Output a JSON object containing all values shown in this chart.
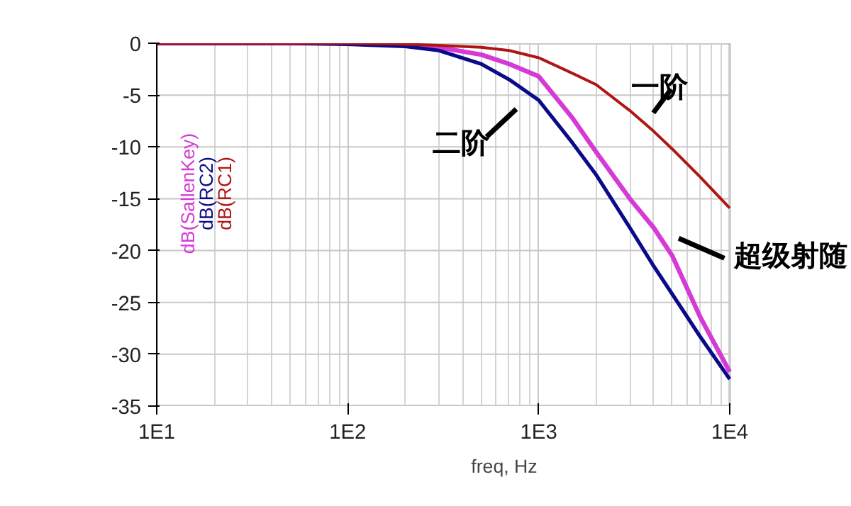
{
  "chart_data": {
    "type": "line",
    "xlabel": "freq, Hz",
    "log": "x",
    "grid": true,
    "legend": "left",
    "line_style": "solid",
    "marker": "none",
    "x": [
      10,
      50,
      100,
      200,
      300,
      500,
      700,
      1000,
      1500,
      2000,
      3000,
      4000,
      5000,
      7000,
      10000
    ],
    "xlim": [
      10,
      10000
    ],
    "xticks": [
      {
        "value": 10,
        "label": "1E1"
      },
      {
        "value": 100,
        "label": "1E2"
      },
      {
        "value": 1000,
        "label": "1E3"
      },
      {
        "value": 10000,
        "label": "1E4"
      }
    ],
    "ylim": [
      -35,
      0
    ],
    "yticks": [
      0,
      -5,
      -10,
      -15,
      -20,
      -25,
      -30,
      -35
    ],
    "series": [
      {
        "name": "dB(SallenKey)",
        "color": "#d63ad6",
        "values": [
          0,
          0,
          0,
          -0.2,
          -0.4,
          -1.1,
          -2.0,
          -3.2,
          -7.2,
          -10.5,
          -15,
          -17.8,
          -20.5,
          -26.4,
          -31.7
        ]
      },
      {
        "name": "dB(RC2)",
        "color": "#0a0a8a",
        "values": [
          0,
          0,
          -0.1,
          -0.3,
          -0.7,
          -2,
          -3.5,
          -5.5,
          -9.6,
          -12.7,
          -17.8,
          -21.5,
          -24.2,
          -28.3,
          -32.4
        ]
      },
      {
        "name": "dB(RC1)",
        "color": "#b01515",
        "values": [
          0,
          0,
          0,
          -0.1,
          -0.2,
          -0.4,
          -0.7,
          -1.4,
          -2.9,
          -4.0,
          -6.5,
          -8.5,
          -10.2,
          -12.9,
          -15.9
        ]
      }
    ],
    "annotations": [
      {
        "text": "一阶",
        "x": 3630,
        "y": -7.7
      },
      {
        "text": "二阶",
        "x": 890,
        "y": -5.2
      },
      {
        "text": "超级射随",
        "x": 4270,
        "y": -18
      }
    ]
  }
}
